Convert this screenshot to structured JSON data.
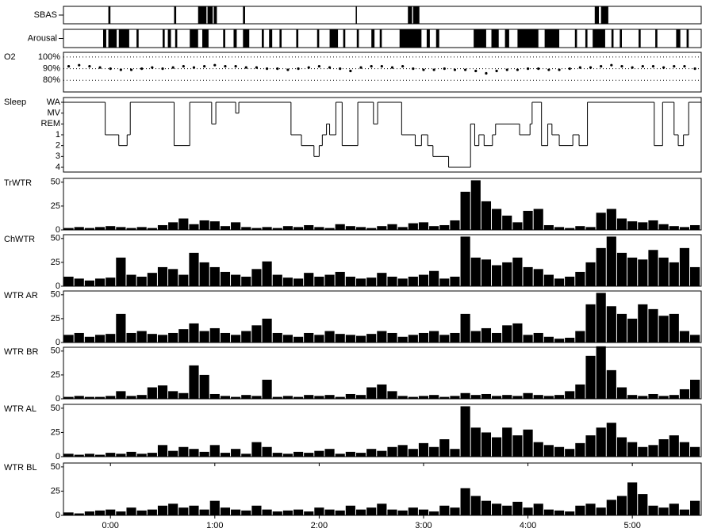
{
  "chart_data": [
    {
      "type": "event",
      "title": "SBAS",
      "xlim": [
        -0.45,
        5.66
      ],
      "events": [
        [
          -0.02,
          0.0
        ],
        [
          0.61,
          0.63
        ],
        [
          0.84,
          0.92
        ],
        [
          0.93,
          0.98
        ],
        [
          0.99,
          1.02
        ],
        [
          1.27,
          1.29
        ],
        [
          2.35,
          2.36
        ],
        [
          2.85,
          2.89
        ],
        [
          2.9,
          2.96
        ],
        [
          4.64,
          4.68
        ],
        [
          4.7,
          4.77
        ]
      ]
    },
    {
      "type": "event",
      "title": "Arousal",
      "xlim": [
        -0.45,
        5.66
      ],
      "events": [
        [
          -0.07,
          -0.04
        ],
        [
          -0.02,
          0.06
        ],
        [
          0.08,
          0.18
        ],
        [
          0.25,
          0.27
        ],
        [
          0.5,
          0.52
        ],
        [
          0.55,
          0.58
        ],
        [
          0.62,
          0.64
        ],
        [
          0.76,
          0.84
        ],
        [
          0.88,
          0.94
        ],
        [
          1.08,
          1.1
        ],
        [
          1.18,
          1.21
        ],
        [
          1.27,
          1.33
        ],
        [
          1.45,
          1.47
        ],
        [
          1.52,
          1.55
        ],
        [
          1.62,
          1.64
        ],
        [
          1.78,
          1.8
        ],
        [
          1.98,
          2.0
        ],
        [
          2.1,
          2.18
        ],
        [
          2.23,
          2.25
        ],
        [
          2.36,
          2.38
        ],
        [
          2.5,
          2.53
        ],
        [
          2.58,
          2.6
        ],
        [
          2.77,
          2.98
        ],
        [
          3.03,
          3.06
        ],
        [
          3.12,
          3.15
        ],
        [
          3.48,
          3.6
        ],
        [
          3.65,
          3.72
        ],
        [
          3.78,
          3.82
        ],
        [
          3.9,
          4.1
        ],
        [
          4.16,
          4.3
        ],
        [
          4.45,
          4.47
        ],
        [
          4.55,
          4.57
        ],
        [
          4.62,
          4.74
        ],
        [
          4.8,
          4.82
        ],
        [
          4.88,
          4.9
        ],
        [
          5.06,
          5.08
        ],
        [
          5.22,
          5.24
        ],
        [
          5.42,
          5.46
        ],
        [
          5.52,
          5.54
        ]
      ]
    },
    {
      "type": "scatter",
      "title": "O2",
      "xlim": [
        -0.45,
        5.66
      ],
      "ylim": [
        70,
        104
      ],
      "yticks": [
        {
          "value": 100,
          "label": "100%"
        },
        {
          "value": 90,
          "label": "90%"
        },
        {
          "value": 80,
          "label": "80%"
        }
      ],
      "grid": true,
      "x": [
        -0.4,
        -0.3,
        -0.2,
        -0.1,
        0,
        0.1,
        0.2,
        0.3,
        0.4,
        0.5,
        0.6,
        0.7,
        0.8,
        0.9,
        1,
        1.1,
        1.2,
        1.3,
        1.4,
        1.5,
        1.6,
        1.7,
        1.8,
        1.9,
        2,
        2.1,
        2.2,
        2.3,
        2.4,
        2.5,
        2.6,
        2.7,
        2.8,
        2.9,
        3,
        3.1,
        3.2,
        3.3,
        3.4,
        3.5,
        3.6,
        3.7,
        3.8,
        3.9,
        4,
        4.1,
        4.2,
        4.3,
        4.4,
        4.5,
        4.6,
        4.7,
        4.8,
        4.9,
        5,
        5.1,
        5.2,
        5.3,
        5.4,
        5.5,
        5.6
      ],
      "values": [
        92,
        93,
        92,
        91,
        90,
        89,
        89,
        90,
        91,
        90,
        91,
        92,
        91,
        92,
        93,
        92,
        92,
        91,
        91,
        90,
        90,
        89,
        90,
        91,
        92,
        91,
        90,
        88,
        91,
        92,
        92,
        91,
        92,
        90,
        89,
        89,
        90,
        89,
        89,
        88,
        86,
        88,
        89,
        89,
        90,
        90,
        89,
        89,
        90,
        91,
        91,
        92,
        93,
        92,
        91,
        92,
        92,
        91,
        92,
        92,
        90
      ]
    },
    {
      "type": "step",
      "title": "Sleep",
      "xlim": [
        -0.45,
        5.66
      ],
      "yticks": [
        "WA",
        "MV",
        "REM",
        "1",
        "2",
        "3",
        "4"
      ],
      "x": [
        -0.45,
        -0.05,
        0.08,
        0.16,
        0.19,
        0.61,
        0.76,
        0.97,
        1.01,
        1.2,
        1.23,
        1.73,
        1.83,
        1.95,
        2.0,
        2.03,
        2.07,
        2.1,
        2.16,
        2.22,
        2.37,
        2.52,
        2.56,
        2.79,
        2.92,
        2.98,
        3.04,
        3.09,
        3.24,
        3.45,
        3.49,
        3.53,
        3.58,
        3.66,
        3.69,
        3.92,
        4.02,
        4.04,
        4.13,
        4.19,
        4.23,
        4.3,
        4.43,
        4.49,
        4.57,
        5.21,
        5.29,
        5.4,
        5.44,
        5.49,
        5.54
      ],
      "values": [
        "WA",
        "1",
        "2",
        "1",
        "WA",
        "2",
        "WA",
        "REM",
        "WA",
        "MV",
        "WA",
        "1",
        "2",
        "3",
        "2",
        "1",
        "REM",
        "1",
        "WA",
        "2",
        "WA",
        "REM",
        "WA",
        "1",
        "2",
        "1",
        "2",
        "3",
        "4",
        "REM",
        "2",
        "1",
        "2",
        "1",
        "REM",
        "1",
        "REM",
        "WA",
        "2",
        "REM",
        "1",
        "2",
        "1",
        "2",
        "WA",
        "2",
        "WA",
        "1",
        "2",
        "1",
        "WA"
      ]
    },
    {
      "type": "bar",
      "title": "TrWTR",
      "xlim": [
        -0.45,
        5.66
      ],
      "ylim": [
        0,
        54
      ],
      "yticks": [
        0,
        25,
        50
      ],
      "color": "#000000",
      "x": [
        -0.4,
        -0.3,
        -0.2,
        -0.1,
        0,
        0.1,
        0.2,
        0.3,
        0.4,
        0.5,
        0.6,
        0.7,
        0.8,
        0.9,
        1,
        1.1,
        1.2,
        1.3,
        1.4,
        1.5,
        1.6,
        1.7,
        1.8,
        1.9,
        2,
        2.1,
        2.2,
        2.3,
        2.4,
        2.5,
        2.6,
        2.7,
        2.8,
        2.9,
        3,
        3.1,
        3.2,
        3.3,
        3.4,
        3.5,
        3.6,
        3.7,
        3.8,
        3.9,
        4,
        4.1,
        4.2,
        4.3,
        4.4,
        4.5,
        4.6,
        4.7,
        4.8,
        4.9,
        5,
        5.1,
        5.2,
        5.3,
        5.4,
        5.5,
        5.6
      ],
      "values": [
        2,
        3,
        2,
        3,
        4,
        3,
        2,
        3,
        2,
        5,
        8,
        12,
        6,
        10,
        9,
        4,
        8,
        3,
        2,
        3,
        2,
        4,
        3,
        5,
        3,
        2,
        6,
        4,
        3,
        2,
        4,
        6,
        3,
        7,
        8,
        4,
        5,
        10,
        40,
        52,
        30,
        22,
        15,
        8,
        20,
        22,
        5,
        3,
        2,
        4,
        3,
        18,
        22,
        12,
        9,
        8,
        10,
        6,
        4,
        3,
        5
      ]
    },
    {
      "type": "bar",
      "title": "ChWTR",
      "xlim": [
        -0.45,
        5.66
      ],
      "ylim": [
        0,
        54
      ],
      "yticks": [
        0,
        25,
        50
      ],
      "color": "#000000",
      "x": [
        -0.4,
        -0.3,
        -0.2,
        -0.1,
        0,
        0.1,
        0.2,
        0.3,
        0.4,
        0.5,
        0.6,
        0.7,
        0.8,
        0.9,
        1,
        1.1,
        1.2,
        1.3,
        1.4,
        1.5,
        1.6,
        1.7,
        1.8,
        1.9,
        2,
        2.1,
        2.2,
        2.3,
        2.4,
        2.5,
        2.6,
        2.7,
        2.8,
        2.9,
        3,
        3.1,
        3.2,
        3.3,
        3.4,
        3.5,
        3.6,
        3.7,
        3.8,
        3.9,
        4,
        4.1,
        4.2,
        4.3,
        4.4,
        4.5,
        4.6,
        4.7,
        4.8,
        4.9,
        5,
        5.1,
        5.2,
        5.3,
        5.4,
        5.5,
        5.6
      ],
      "values": [
        10,
        8,
        6,
        8,
        9,
        30,
        12,
        10,
        14,
        20,
        18,
        12,
        35,
        25,
        20,
        15,
        12,
        10,
        18,
        26,
        12,
        9,
        8,
        14,
        10,
        12,
        15,
        10,
        8,
        9,
        14,
        10,
        8,
        10,
        12,
        16,
        8,
        10,
        52,
        30,
        28,
        22,
        25,
        30,
        20,
        18,
        12,
        8,
        10,
        15,
        25,
        40,
        52,
        35,
        30,
        28,
        38,
        30,
        25,
        40,
        20
      ]
    },
    {
      "type": "bar",
      "title": "WTR AR",
      "xlim": [
        -0.45,
        5.66
      ],
      "ylim": [
        0,
        54
      ],
      "yticks": [
        0,
        25,
        50
      ],
      "color": "#000000",
      "x": [
        -0.4,
        -0.3,
        -0.2,
        -0.1,
        0,
        0.1,
        0.2,
        0.3,
        0.4,
        0.5,
        0.6,
        0.7,
        0.8,
        0.9,
        1,
        1.1,
        1.2,
        1.3,
        1.4,
        1.5,
        1.6,
        1.7,
        1.8,
        1.9,
        2,
        2.1,
        2.2,
        2.3,
        2.4,
        2.5,
        2.6,
        2.7,
        2.8,
        2.9,
        3,
        3.1,
        3.2,
        3.3,
        3.4,
        3.5,
        3.6,
        3.7,
        3.8,
        3.9,
        4,
        4.1,
        4.2,
        4.3,
        4.4,
        4.5,
        4.6,
        4.7,
        4.8,
        4.9,
        5,
        5.1,
        5.2,
        5.3,
        5.4,
        5.5,
        5.6
      ],
      "values": [
        8,
        10,
        6,
        8,
        9,
        30,
        10,
        12,
        9,
        8,
        10,
        14,
        20,
        12,
        15,
        10,
        8,
        12,
        18,
        25,
        10,
        8,
        6,
        10,
        8,
        12,
        9,
        8,
        7,
        9,
        12,
        10,
        6,
        8,
        10,
        12,
        8,
        10,
        30,
        12,
        15,
        10,
        18,
        20,
        8,
        10,
        6,
        4,
        5,
        12,
        40,
        52,
        38,
        30,
        25,
        40,
        35,
        28,
        30,
        12,
        8
      ]
    },
    {
      "type": "bar",
      "title": "WTR BR",
      "xlim": [
        -0.45,
        5.66
      ],
      "ylim": [
        0,
        54
      ],
      "yticks": [
        0,
        25,
        50
      ],
      "color": "#000000",
      "x": [
        -0.4,
        -0.3,
        -0.2,
        -0.1,
        0,
        0.1,
        0.2,
        0.3,
        0.4,
        0.5,
        0.6,
        0.7,
        0.8,
        0.9,
        1,
        1.1,
        1.2,
        1.3,
        1.4,
        1.5,
        1.6,
        1.7,
        1.8,
        1.9,
        2,
        2.1,
        2.2,
        2.3,
        2.4,
        2.5,
        2.6,
        2.7,
        2.8,
        2.9,
        3,
        3.1,
        3.2,
        3.3,
        3.4,
        3.5,
        3.6,
        3.7,
        3.8,
        3.9,
        4,
        4.1,
        4.2,
        4.3,
        4.4,
        4.5,
        4.6,
        4.7,
        4.8,
        4.9,
        5,
        5.1,
        5.2,
        5.3,
        5.4,
        5.5,
        5.6
      ],
      "values": [
        2,
        3,
        2,
        2,
        3,
        8,
        3,
        4,
        12,
        14,
        8,
        6,
        35,
        25,
        5,
        3,
        2,
        4,
        3,
        20,
        2,
        3,
        2,
        4,
        3,
        4,
        2,
        5,
        4,
        12,
        15,
        8,
        3,
        2,
        3,
        4,
        2,
        3,
        6,
        4,
        5,
        3,
        4,
        3,
        6,
        4,
        3,
        4,
        8,
        15,
        45,
        55,
        30,
        12,
        4,
        3,
        5,
        3,
        4,
        10,
        20
      ]
    },
    {
      "type": "bar",
      "title": "WTR AL",
      "xlim": [
        -0.45,
        5.66
      ],
      "ylim": [
        0,
        54
      ],
      "yticks": [
        0,
        25,
        50
      ],
      "color": "#000000",
      "x": [
        -0.4,
        -0.3,
        -0.2,
        -0.1,
        0,
        0.1,
        0.2,
        0.3,
        0.4,
        0.5,
        0.6,
        0.7,
        0.8,
        0.9,
        1,
        1.1,
        1.2,
        1.3,
        1.4,
        1.5,
        1.6,
        1.7,
        1.8,
        1.9,
        2,
        2.1,
        2.2,
        2.3,
        2.4,
        2.5,
        2.6,
        2.7,
        2.8,
        2.9,
        3,
        3.1,
        3.2,
        3.3,
        3.4,
        3.5,
        3.6,
        3.7,
        3.8,
        3.9,
        4,
        4.1,
        4.2,
        4.3,
        4.4,
        4.5,
        4.6,
        4.7,
        4.8,
        4.9,
        5,
        5.1,
        5.2,
        5.3,
        5.4,
        5.5,
        5.6
      ],
      "values": [
        3,
        2,
        3,
        2,
        4,
        3,
        5,
        3,
        4,
        12,
        6,
        10,
        8,
        5,
        12,
        4,
        8,
        3,
        15,
        10,
        4,
        3,
        5,
        4,
        6,
        8,
        3,
        5,
        4,
        8,
        6,
        10,
        12,
        8,
        14,
        10,
        18,
        8,
        52,
        30,
        25,
        20,
        30,
        22,
        28,
        15,
        12,
        10,
        8,
        14,
        22,
        30,
        35,
        20,
        15,
        10,
        12,
        18,
        22,
        15,
        10
      ]
    },
    {
      "type": "bar",
      "title": "WTR BL",
      "xlim": [
        -0.45,
        5.66
      ],
      "ylim": [
        0,
        54
      ],
      "yticks": [
        0,
        25,
        50
      ],
      "color": "#000000",
      "xticks": [
        {
          "value": 0,
          "label": "0:00"
        },
        {
          "value": 1,
          "label": "1:00"
        },
        {
          "value": 2,
          "label": "2:00"
        },
        {
          "value": 3,
          "label": "3:00"
        },
        {
          "value": 4,
          "label": "4:00"
        },
        {
          "value": 5,
          "label": "5:00"
        }
      ],
      "x": [
        -0.4,
        -0.3,
        -0.2,
        -0.1,
        0,
        0.1,
        0.2,
        0.3,
        0.4,
        0.5,
        0.6,
        0.7,
        0.8,
        0.9,
        1,
        1.1,
        1.2,
        1.3,
        1.4,
        1.5,
        1.6,
        1.7,
        1.8,
        1.9,
        2,
        2.1,
        2.2,
        2.3,
        2.4,
        2.5,
        2.6,
        2.7,
        2.8,
        2.9,
        3,
        3.1,
        3.2,
        3.3,
        3.4,
        3.5,
        3.6,
        3.7,
        3.8,
        3.9,
        4,
        4.1,
        4.2,
        4.3,
        4.4,
        4.5,
        4.6,
        4.7,
        4.8,
        4.9,
        5,
        5.1,
        5.2,
        5.3,
        5.4,
        5.5,
        5.6
      ],
      "values": [
        3,
        2,
        4,
        5,
        6,
        4,
        8,
        5,
        6,
        10,
        12,
        8,
        10,
        6,
        15,
        8,
        6,
        5,
        10,
        6,
        4,
        5,
        6,
        4,
        8,
        6,
        5,
        10,
        6,
        8,
        12,
        6,
        5,
        8,
        6,
        4,
        10,
        8,
        28,
        20,
        15,
        12,
        10,
        14,
        8,
        12,
        6,
        5,
        4,
        10,
        12,
        8,
        16,
        20,
        34,
        22,
        10,
        8,
        12,
        6,
        15
      ]
    }
  ]
}
